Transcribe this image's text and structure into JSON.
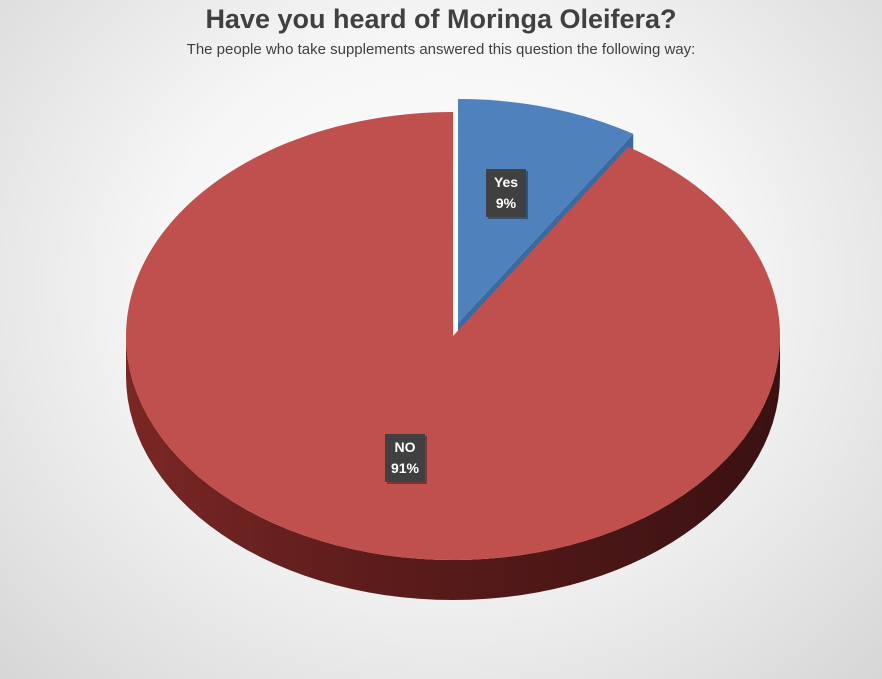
{
  "chart_data": {
    "type": "pie",
    "title": "Have you heard of Moringa Oleifera?",
    "subtitle": "The people who take supplements answered this question the following way:",
    "three_d": true,
    "exploded": "Yes",
    "categories": [
      "Yes",
      "NO"
    ],
    "values": [
      9,
      91
    ],
    "data_labels": [
      {
        "category": "Yes",
        "percent": "9%"
      },
      {
        "category": "NO",
        "percent": "91%"
      }
    ],
    "colors": {
      "Yes": "#4f81bd",
      "NO": "#c0504d"
    },
    "legend": "none"
  }
}
